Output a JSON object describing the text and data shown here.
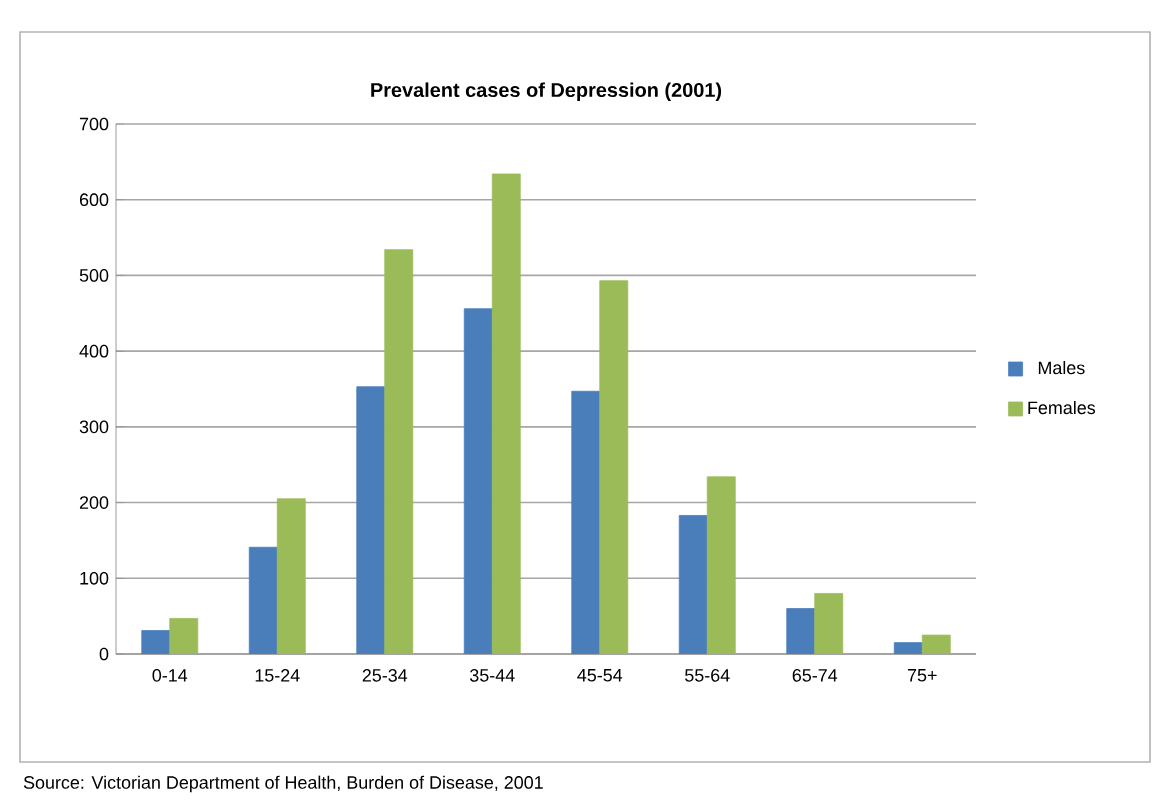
{
  "chart_data": {
    "type": "bar",
    "title": "Prevalent cases of Depression (2001)",
    "categories": [
      "0-14",
      "15-24",
      "25-34",
      "35-44",
      "45-54",
      "55-64",
      "65-74",
      "75+"
    ],
    "series": [
      {
        "name": "Males",
        "color": "#4a7ebb",
        "values": [
          31,
          141,
          353,
          456,
          347,
          183,
          60,
          15
        ]
      },
      {
        "name": "Females",
        "color": "#9bbb59",
        "values": [
          47,
          205,
          534,
          634,
          493,
          234,
          80,
          25
        ]
      }
    ],
    "ylim": [
      0,
      700
    ],
    "yticks": [
      0,
      100,
      200,
      300,
      400,
      500,
      600,
      700
    ],
    "grid": "y",
    "legend": "right",
    "annotations": [
      "Source: Victorian Department of Health, Burden of Disease, 2001"
    ]
  }
}
